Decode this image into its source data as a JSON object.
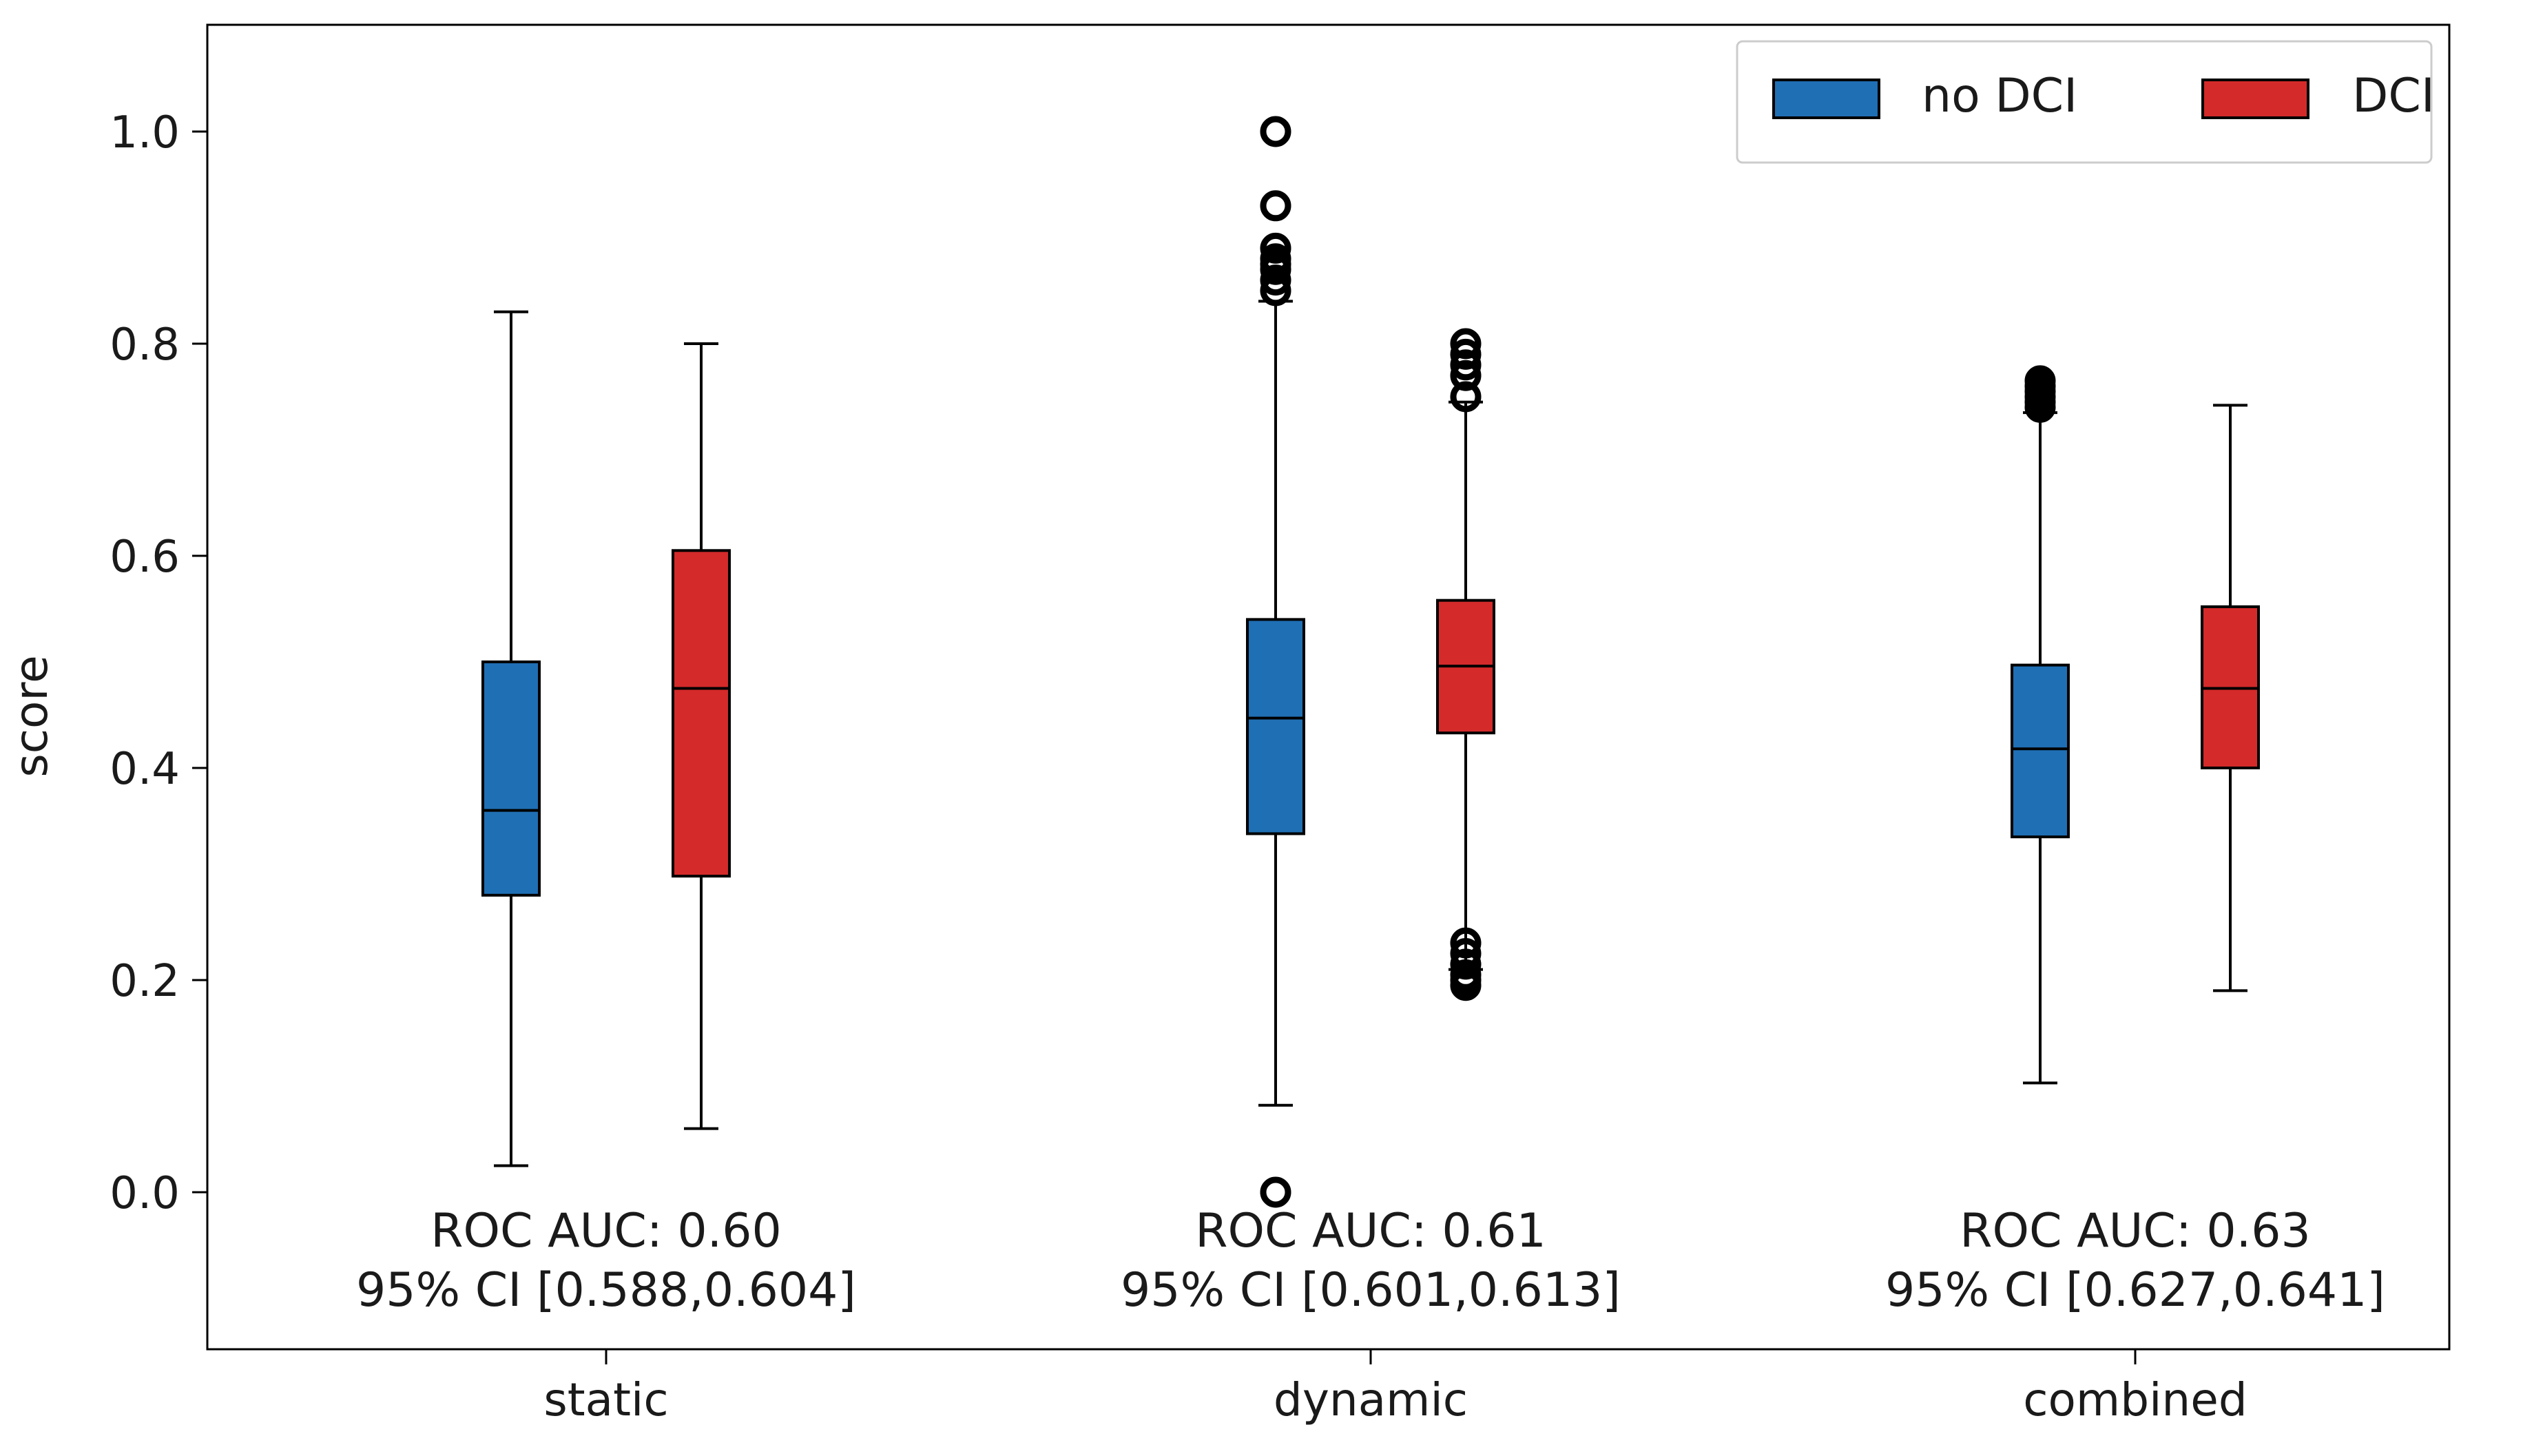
{
  "chart_data": {
    "type": "boxplot",
    "title": "",
    "xlabel": "",
    "ylabel": "score",
    "ylim": [
      -0.15,
      1.1
    ],
    "yticks": [
      0.0,
      0.2,
      0.4,
      0.6,
      0.8,
      1.0
    ],
    "ytick_labels": [
      "0.0",
      "0.2",
      "0.4",
      "0.6",
      "0.8",
      "1.0"
    ],
    "grid": false,
    "legend_position": "top-right",
    "categories": [
      "static",
      "dynamic",
      "combined"
    ],
    "annotations": [
      {
        "auc": "ROC AUC: 0.60",
        "ci": "95% CI [0.588,0.604]"
      },
      {
        "auc": "ROC AUC: 0.61",
        "ci": "95% CI [0.601,0.613]"
      },
      {
        "auc": "ROC AUC: 0.63",
        "ci": "95% CI [0.627,0.641]"
      }
    ],
    "series": [
      {
        "name": "no DCI",
        "color": "#1f6fb4",
        "boxes": [
          {
            "whislo": 0.025,
            "q1": 0.28,
            "med": 0.36,
            "q3": 0.5,
            "whishi": 0.83,
            "fliers": []
          },
          {
            "whislo": 0.082,
            "q1": 0.338,
            "med": 0.447,
            "q3": 0.54,
            "whishi": 0.84,
            "fliers": [
              0.0,
              0.85,
              0.86,
              0.87,
              0.875,
              0.88,
              0.89,
              0.93,
              1.0
            ]
          },
          {
            "whislo": 0.103,
            "q1": 0.335,
            "med": 0.418,
            "q3": 0.497,
            "whishi": 0.735,
            "fliers": [
              0.74,
              0.745,
              0.75,
              0.755,
              0.76,
              0.765
            ]
          }
        ]
      },
      {
        "name": "DCI",
        "color": "#d42a2a",
        "boxes": [
          {
            "whislo": 0.06,
            "q1": 0.298,
            "med": 0.475,
            "q3": 0.605,
            "whishi": 0.8,
            "fliers": []
          },
          {
            "whislo": 0.21,
            "q1": 0.433,
            "med": 0.496,
            "q3": 0.558,
            "whishi": 0.745,
            "fliers": [
              0.195,
              0.2,
              0.205,
              0.215,
              0.225,
              0.235,
              0.75,
              0.77,
              0.78,
              0.79,
              0.8
            ]
          },
          {
            "whislo": 0.19,
            "q1": 0.4,
            "med": 0.475,
            "q3": 0.552,
            "whishi": 0.742,
            "fliers": []
          }
        ]
      }
    ]
  }
}
